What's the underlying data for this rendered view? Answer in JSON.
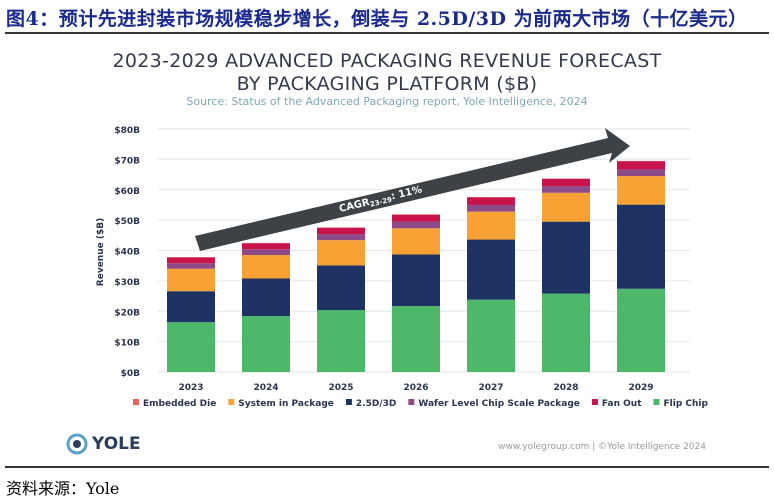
{
  "header": {
    "title": "图4：预计先进封装市场规模稳步增长，倒装与 2.5D/3D 为前两大市场（十亿美元）"
  },
  "footer": {
    "source": "资料来源：Yole",
    "logo_text": "YOLE",
    "copyright": "www.yolegroup.com | ©Yole Intelligence 2024"
  },
  "chart_data": {
    "type": "bar",
    "stacked": true,
    "title": "2023-2029 ADVANCED PACKAGING REVENUE FORECAST",
    "title_line2": "BY PACKAGING PLATFORM ($B)",
    "subtitle": "Source: Status of the Advanced Packaging report, Yole Intelligence, 2024",
    "ylabel": "Revenue ($B)",
    "xlabel": "",
    "ylim": [
      0,
      80
    ],
    "yticks": [
      "$0B",
      "$10B",
      "$20B",
      "$30B",
      "$40B",
      "$50B",
      "$60B",
      "$70B",
      "$80B"
    ],
    "grid": true,
    "legend_position": "bottom",
    "categories": [
      "2023",
      "2024",
      "2025",
      "2026",
      "2027",
      "2028",
      "2029"
    ],
    "series": [
      {
        "name": "Flip Chip",
        "color": "#4db86a",
        "values": [
          16.4,
          18.4,
          20.4,
          21.7,
          23.8,
          25.8,
          27.4
        ]
      },
      {
        "name": "2.5D/3D",
        "color": "#1e3264",
        "values": [
          10.2,
          12.4,
          14.7,
          17.0,
          19.8,
          23.7,
          27.7
        ]
      },
      {
        "name": "System in Package",
        "color": "#f8a235",
        "values": [
          7.4,
          7.7,
          8.3,
          8.6,
          9.2,
          9.5,
          9.4
        ]
      },
      {
        "name": "Wafer Level Chip Scale Package",
        "color": "#8e4a86",
        "values": [
          1.8,
          1.9,
          2.0,
          2.2,
          2.2,
          2.2,
          2.2
        ]
      },
      {
        "name": "Fan Out",
        "color": "#c8144a",
        "values": [
          1.9,
          2.0,
          2.1,
          2.3,
          2.5,
          2.4,
          2.7
        ]
      },
      {
        "name": "Embedded Die",
        "color": "#e8605a",
        "values": [
          0.1,
          0.1,
          0.1,
          0.1,
          0.1,
          0.1,
          0.1
        ]
      }
    ],
    "legend_order": [
      "Embedded Die",
      "System in Package",
      "2.5D/3D",
      "Wafer Level Chip Scale Package",
      "Fan Out",
      "Flip Chip"
    ],
    "annotation": {
      "text": "CAGR",
      "sub": "23-29",
      "value": ": 11%",
      "color": "#3d4247"
    }
  }
}
